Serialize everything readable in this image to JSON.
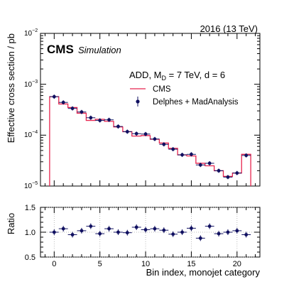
{
  "header": {
    "energy_label": "2016 (13 TeV)",
    "cms_label": "CMS",
    "cms_sublabel": "Simulation"
  },
  "chart_data": [
    {
      "type": "step",
      "legend_title": "ADD, M",
      "legend_title_sub": "D",
      "legend_title_rest": " = 7 TeV, d = 6",
      "ylabel": "Effective cross section / pb",
      "yscale": "log",
      "ylim": [
        1e-05,
        0.01
      ],
      "xlim": [
        -1.5,
        22.5
      ],
      "ytick_labels": [
        "10",
        "10",
        "10",
        "10"
      ],
      "ytick_exponents": [
        "−5",
        "−4",
        "−3",
        "−2"
      ],
      "legend_position": "center-right",
      "colors": {
        "cms": "#e8254f",
        "delphes": "#101060"
      },
      "series": [
        {
          "name": "CMS",
          "style": "step",
          "x_edges": [
            -0.5,
            0.5,
            1.5,
            2.5,
            3.5,
            4.5,
            5.5,
            6.5,
            7.5,
            8.5,
            9.5,
            10.5,
            11.5,
            12.5,
            13.5,
            14.5,
            15.5,
            16.5,
            17.5,
            18.5,
            19.5,
            20.5,
            21.5
          ],
          "values": [
            0.00057,
            0.00041,
            0.00035,
            0.00027,
            0.000195,
            0.000205,
            0.000187,
            0.000145,
            0.000117,
            9.6e-05,
            9.8e-05,
            8.3e-05,
            7e-05,
            5.5e-05,
            4.1e-05,
            3.9e-05,
            2.8e-05,
            2.5e-05,
            2e-05,
            1.55e-05,
            1.8e-05,
            4.2e-05
          ]
        },
        {
          "name": "Delphes + MadAnalysis",
          "style": "points",
          "x": [
            0,
            1,
            2,
            3,
            4,
            5,
            6,
            7,
            8,
            9,
            10,
            11,
            12,
            13,
            14,
            15,
            16,
            17,
            18,
            19,
            20,
            21
          ],
          "values": [
            0.00057,
            0.00044,
            0.000335,
            0.000285,
            0.00022,
            0.000195,
            0.0002,
            0.000148,
            0.000117,
            0.000107,
            0.000105,
            8.4e-05,
            6.6e-05,
            5.3e-05,
            4.1e-05,
            4.2e-05,
            2.6e-05,
            2.8e-05,
            2e-05,
            1.5e-05,
            1.8e-05,
            4e-05
          ]
        }
      ]
    },
    {
      "type": "scatter",
      "ylabel": "Ratio",
      "xlabel": "Bin index, monojet category",
      "ylim": [
        0.5,
        1.5
      ],
      "xlim": [
        -1.5,
        22.5
      ],
      "ytick_labels": [
        "0.5",
        "1.0",
        "1.5"
      ],
      "xtick_labels": [
        "0",
        "5",
        "10",
        "15",
        "20"
      ],
      "x": [
        0,
        1,
        2,
        3,
        4,
        5,
        6,
        7,
        8,
        9,
        10,
        11,
        12,
        13,
        14,
        15,
        16,
        17,
        18,
        19,
        20,
        21
      ],
      "values": [
        1.0,
        1.07,
        0.95,
        1.03,
        1.12,
        0.97,
        1.07,
        1.0,
        0.99,
        1.1,
        1.05,
        1.07,
        1.04,
        0.96,
        1.0,
        1.08,
        0.88,
        1.12,
        0.97,
        1.0,
        1.03,
        0.95
      ]
    }
  ]
}
